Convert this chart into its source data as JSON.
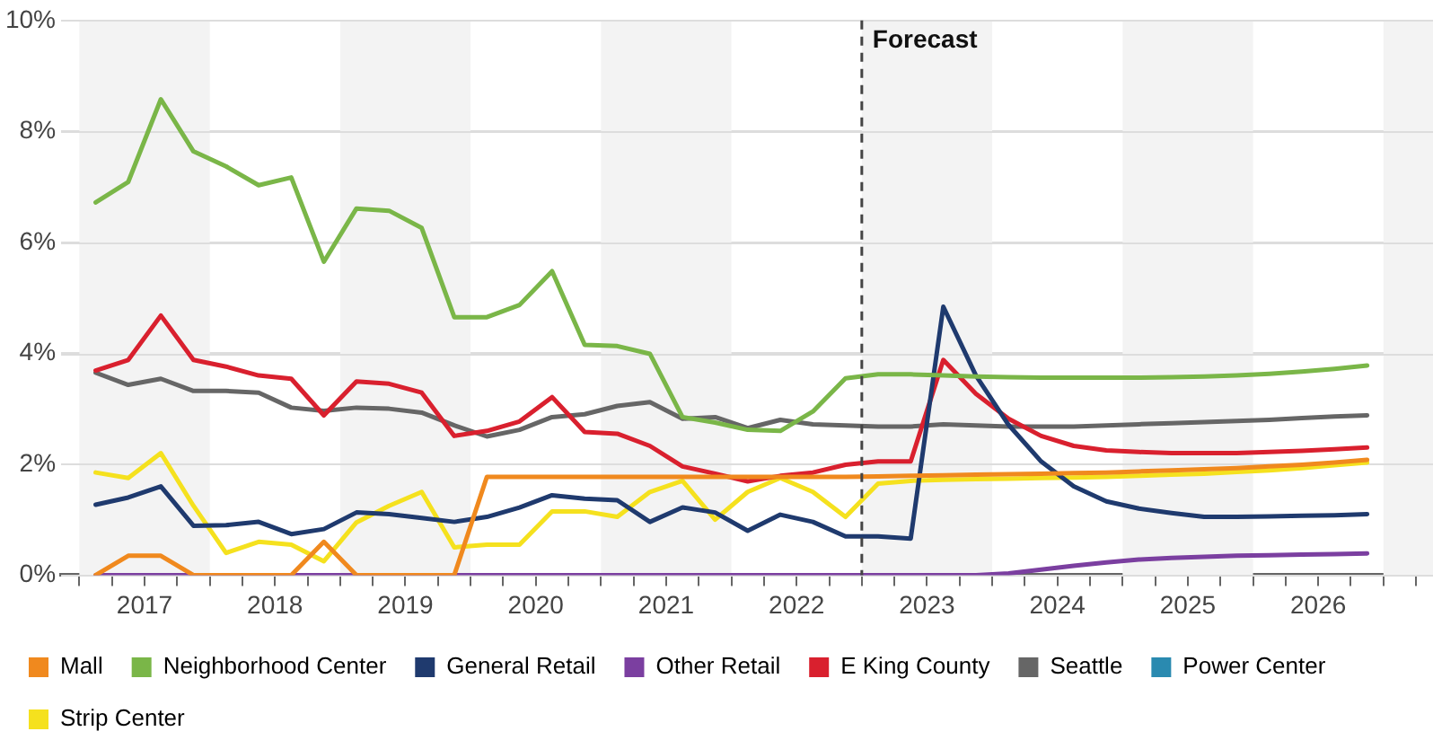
{
  "chart_data": {
    "type": "line",
    "x": [
      2017.125,
      2017.375,
      2017.625,
      2017.875,
      2018.125,
      2018.375,
      2018.625,
      2018.875,
      2019.125,
      2019.375,
      2019.625,
      2019.875,
      2020.125,
      2020.375,
      2020.625,
      2020.875,
      2021.125,
      2021.375,
      2021.625,
      2021.875,
      2022.125,
      2022.375,
      2022.625,
      2022.875,
      2023.125,
      2023.375,
      2023.625,
      2023.875,
      2024.125,
      2024.375,
      2024.625,
      2024.875,
      2025.125,
      2025.375,
      2025.625,
      2025.875,
      2026.125,
      2026.375,
      2026.625,
      2026.875
    ],
    "series": [
      {
        "name": "Mall",
        "color": "#f0891e",
        "values": [
          0,
          0.35,
          0.35,
          0,
          0,
          0,
          0,
          0.6,
          0,
          0,
          0,
          0,
          1.77,
          1.77,
          1.77,
          1.77,
          1.77,
          1.77,
          1.77,
          1.77,
          1.77,
          1.77,
          1.77,
          1.77,
          1.78,
          1.79,
          1.8,
          1.81,
          1.82,
          1.83,
          1.84,
          1.85,
          1.87,
          1.89,
          1.91,
          1.93,
          1.96,
          1.99,
          2.03,
          2.08
        ]
      },
      {
        "name": "Neighborhood Center",
        "color": "#7ab648",
        "values": [
          6.72,
          7.09,
          8.58,
          7.64,
          7.37,
          7.03,
          7.17,
          5.65,
          6.61,
          6.57,
          6.26,
          4.65,
          4.65,
          4.87,
          5.48,
          4.15,
          4.13,
          3.99,
          2.85,
          2.75,
          2.62,
          2.6,
          2.95,
          3.55,
          3.62,
          3.62,
          3.6,
          3.58,
          3.57,
          3.56,
          3.56,
          3.56,
          3.56,
          3.57,
          3.58,
          3.6,
          3.63,
          3.67,
          3.72,
          3.78
        ]
      },
      {
        "name": "General Retail",
        "color": "#1f3a6e",
        "values": [
          1.27,
          1.4,
          1.6,
          0.89,
          0.9,
          0.96,
          0.74,
          0.83,
          1.13,
          1.1,
          1.03,
          0.96,
          1.05,
          1.22,
          1.44,
          1.38,
          1.35,
          0.96,
          1.22,
          1.13,
          0.8,
          1.09,
          0.96,
          0.7,
          0.7,
          0.66,
          4.84,
          3.6,
          2.71,
          2.05,
          1.6,
          1.33,
          1.2,
          1.12,
          1.05,
          1.05,
          1.06,
          1.07,
          1.08,
          1.1
        ]
      },
      {
        "name": "Other Retail",
        "color": "#7b3fa0",
        "values": [
          0,
          0,
          0,
          0,
          0,
          0,
          0,
          0,
          0,
          0,
          0,
          0,
          0,
          0,
          0,
          0,
          0,
          0,
          0,
          0,
          0,
          0,
          0,
          0,
          0,
          0,
          0,
          0,
          0.03,
          0.1,
          0.17,
          0.23,
          0.28,
          0.31,
          0.33,
          0.35,
          0.36,
          0.37,
          0.38,
          0.39
        ]
      },
      {
        "name": "E King County",
        "color": "#d9202e",
        "values": [
          3.69,
          3.88,
          4.68,
          3.88,
          3.76,
          3.6,
          3.54,
          2.88,
          3.49,
          3.45,
          3.29,
          2.51,
          2.6,
          2.77,
          3.21,
          2.58,
          2.55,
          2.33,
          1.96,
          1.83,
          1.69,
          1.79,
          1.85,
          1.99,
          2.05,
          2.05,
          3.88,
          3.27,
          2.82,
          2.51,
          2.33,
          2.25,
          2.22,
          2.2,
          2.2,
          2.2,
          2.22,
          2.24,
          2.27,
          2.3
        ]
      },
      {
        "name": "Seattle",
        "color": "#666666",
        "values": [
          3.65,
          3.43,
          3.54,
          3.32,
          3.32,
          3.29,
          3.02,
          2.96,
          3.02,
          3.0,
          2.93,
          2.7,
          2.5,
          2.62,
          2.85,
          2.9,
          3.05,
          3.12,
          2.82,
          2.85,
          2.65,
          2.8,
          2.72,
          2.7,
          2.68,
          2.68,
          2.72,
          2.7,
          2.68,
          2.68,
          2.68,
          2.7,
          2.72,
          2.74,
          2.76,
          2.78,
          2.8,
          2.83,
          2.86,
          2.88
        ]
      },
      {
        "name": "Power Center",
        "color": "#2a8ab0",
        "values": [
          null,
          null,
          null,
          null,
          null,
          null,
          null,
          null,
          null,
          null,
          null,
          null,
          null,
          null,
          null,
          null,
          null,
          null,
          null,
          null,
          null,
          null,
          null,
          null,
          null,
          null,
          null,
          null,
          null,
          null,
          null,
          null,
          null,
          null,
          null,
          null,
          null,
          null,
          null,
          null
        ]
      },
      {
        "name": "Strip Center",
        "color": "#f5e11e",
        "values": [
          1.85,
          1.75,
          2.2,
          1.25,
          0.4,
          0.6,
          0.55,
          0.25,
          0.95,
          1.25,
          1.5,
          0.5,
          0.55,
          0.55,
          1.15,
          1.15,
          1.05,
          1.5,
          1.7,
          1.0,
          1.5,
          1.75,
          1.5,
          1.05,
          1.65,
          1.7,
          1.72,
          1.73,
          1.74,
          1.75,
          1.76,
          1.77,
          1.79,
          1.81,
          1.83,
          1.86,
          1.89,
          1.93,
          1.98,
          2.03
        ]
      }
    ],
    "xlim": [
      2016.86,
      2027.38
    ],
    "xticks": [
      {
        "value": 2017,
        "label": null
      },
      {
        "value": 2017.25,
        "label": null
      },
      {
        "value": 2017.5,
        "label": "2017"
      },
      {
        "value": 2017.75,
        "label": null
      },
      {
        "value": 2018,
        "label": null
      },
      {
        "value": 2018.25,
        "label": null
      },
      {
        "value": 2018.5,
        "label": "2018"
      },
      {
        "value": 2018.75,
        "label": null
      },
      {
        "value": 2019,
        "label": null
      },
      {
        "value": 2019.25,
        "label": null
      },
      {
        "value": 2019.5,
        "label": "2019"
      },
      {
        "value": 2019.75,
        "label": null
      },
      {
        "value": 2020,
        "label": null
      },
      {
        "value": 2020.25,
        "label": null
      },
      {
        "value": 2020.5,
        "label": "2020"
      },
      {
        "value": 2020.75,
        "label": null
      },
      {
        "value": 2021,
        "label": null
      },
      {
        "value": 2021.25,
        "label": null
      },
      {
        "value": 2021.5,
        "label": "2021"
      },
      {
        "value": 2021.75,
        "label": null
      },
      {
        "value": 2022,
        "label": null
      },
      {
        "value": 2022.25,
        "label": null
      },
      {
        "value": 2022.5,
        "label": "2022"
      },
      {
        "value": 2022.75,
        "label": null
      },
      {
        "value": 2023,
        "label": null
      },
      {
        "value": 2023.25,
        "label": null
      },
      {
        "value": 2023.5,
        "label": "2023"
      },
      {
        "value": 2023.75,
        "label": null
      },
      {
        "value": 2024,
        "label": null
      },
      {
        "value": 2024.25,
        "label": null
      },
      {
        "value": 2024.5,
        "label": "2024"
      },
      {
        "value": 2024.75,
        "label": null
      },
      {
        "value": 2025,
        "label": null
      },
      {
        "value": 2025.25,
        "label": null
      },
      {
        "value": 2025.5,
        "label": "2025"
      },
      {
        "value": 2025.75,
        "label": null
      },
      {
        "value": 2026,
        "label": null
      },
      {
        "value": 2026.25,
        "label": null
      },
      {
        "value": 2026.5,
        "label": "2026"
      },
      {
        "value": 2026.75,
        "label": null
      },
      {
        "value": 2027,
        "label": null
      },
      {
        "value": 2027.25,
        "label": null
      }
    ],
    "ylim": [
      0,
      10
    ],
    "yticks": [
      {
        "value": 0,
        "label": "0%"
      },
      {
        "value": 2,
        "label": "2%"
      },
      {
        "value": 4,
        "label": "4%"
      },
      {
        "value": 6,
        "label": "6%"
      },
      {
        "value": 8,
        "label": "8%"
      },
      {
        "value": 10,
        "label": "10%"
      }
    ],
    "ref_lines": [
      {
        "axis": "x",
        "value": 2023,
        "label": "Forecast",
        "color": "#444444",
        "line_style": "dashed"
      }
    ],
    "bands": [
      {
        "axis": "x",
        "from": 2017,
        "to": 2018,
        "color": "#f3f3f3"
      },
      {
        "axis": "x",
        "from": 2019,
        "to": 2020,
        "color": "#f3f3f3"
      },
      {
        "axis": "x",
        "from": 2021,
        "to": 2022,
        "color": "#f3f3f3"
      },
      {
        "axis": "x",
        "from": 2023,
        "to": 2024,
        "color": "#f3f3f3"
      },
      {
        "axis": "x",
        "from": 2025,
        "to": 2026,
        "color": "#f3f3f3"
      },
      {
        "axis": "x",
        "from": 2027,
        "to": 2027.38,
        "color": "#f3f3f3"
      }
    ],
    "grid": "y",
    "legend": "bottom",
    "marker": "none",
    "line_style": "solid"
  }
}
